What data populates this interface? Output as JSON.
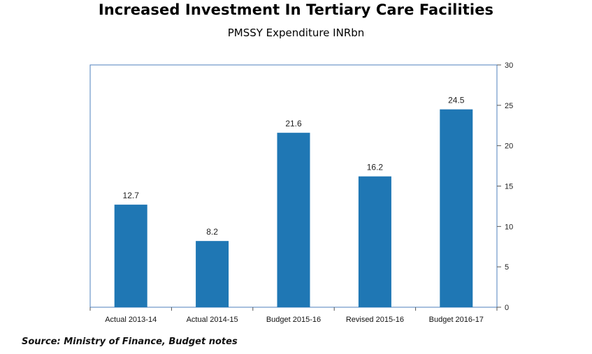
{
  "header": {
    "title": "Increased Investment In Tertiary Care Facilities",
    "subtitle": "PMSSY Expenditure INRbn"
  },
  "footer": {
    "source": "Source: Ministry of Finance, Budget notes"
  },
  "colors": {
    "bar": "#1f77b4",
    "plot_border": "#4f81bd"
  },
  "chart_data": {
    "type": "bar",
    "categories": [
      "Actual 2013-14",
      "Actual 2014-15",
      "Budget 2015-16",
      "Revised 2015-16",
      "Budget 2016-17"
    ],
    "values": [
      12.7,
      8.2,
      21.6,
      16.2,
      24.5
    ],
    "data_labels": [
      "12.7",
      "8.2",
      "21.6",
      "16.2",
      "24.5"
    ],
    "title": "PMSSY Expenditure INRbn",
    "xlabel": "",
    "ylabel": "",
    "ylim": [
      0,
      30
    ],
    "y_ticks": [
      0,
      5,
      10,
      15,
      20,
      25,
      30
    ],
    "y_axis_side": "right",
    "grid": false,
    "legend": "none"
  }
}
